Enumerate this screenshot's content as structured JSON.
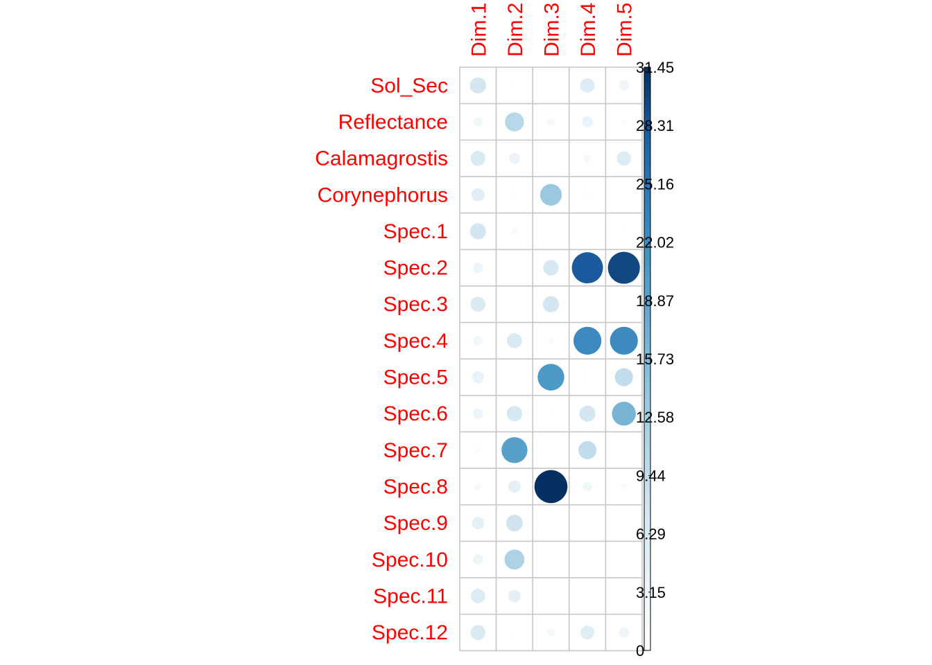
{
  "chart_data": {
    "type": "heatmap",
    "style": "corrplot-circles",
    "columns": [
      "Dim.1",
      "Dim.2",
      "Dim.3",
      "Dim.4",
      "Dim.5"
    ],
    "rows": [
      "Sol_Sec",
      "Reflectance",
      "Calamagrostis",
      "Corynephorus",
      "Spec.1",
      "Spec.2",
      "Spec.3",
      "Spec.4",
      "Spec.5",
      "Spec.6",
      "Spec.7",
      "Spec.8",
      "Spec.9",
      "Spec.10",
      "Spec.11",
      "Spec.12"
    ],
    "values": [
      [
        7.5,
        0.3,
        0.0,
        6.0,
        3.0
      ],
      [
        2.5,
        10.5,
        1.8,
        3.5,
        1.2
      ],
      [
        6.5,
        3.5,
        0.1,
        1.8,
        6.0
      ],
      [
        5.0,
        0.5,
        13.5,
        0.7,
        0.0
      ],
      [
        7.5,
        1.5,
        0.05,
        0.0,
        0.5
      ],
      [
        3.0,
        0.1,
        7.0,
        28.0,
        29.5
      ],
      [
        6.5,
        0.0,
        7.5,
        0.0,
        0.05
      ],
      [
        2.5,
        6.5,
        1.0,
        22.5,
        22.5
      ],
      [
        4.0,
        0.0,
        20.5,
        0.5,
        9.5
      ],
      [
        3.0,
        7.0,
        0.7,
        7.5,
        16.5
      ],
      [
        1.0,
        19.5,
        0.0,
        9.5,
        0.1
      ],
      [
        1.5,
        4.5,
        31.45,
        2.5,
        1.5
      ],
      [
        4.5,
        8.0,
        0.1,
        0.0,
        0.05
      ],
      [
        3.0,
        11.5,
        0.0,
        0.0,
        0.0
      ],
      [
        6.0,
        4.5,
        0.0,
        0.0,
        0.0
      ],
      [
        6.5,
        0.3,
        2.0,
        5.5,
        3.0
      ]
    ],
    "colorbar": {
      "min": 0,
      "max": 31.45,
      "ticks": [
        "31.45",
        "28.31",
        "25.16",
        "22.02",
        "18.87",
        "15.73",
        "12.58",
        "9.44",
        "6.29",
        "3.15",
        "0"
      ],
      "color_low": "#ffffff",
      "color_mid": "#d1e5f0",
      "color_high": "#053061"
    },
    "grid": true,
    "label_color": "#ff0000"
  }
}
